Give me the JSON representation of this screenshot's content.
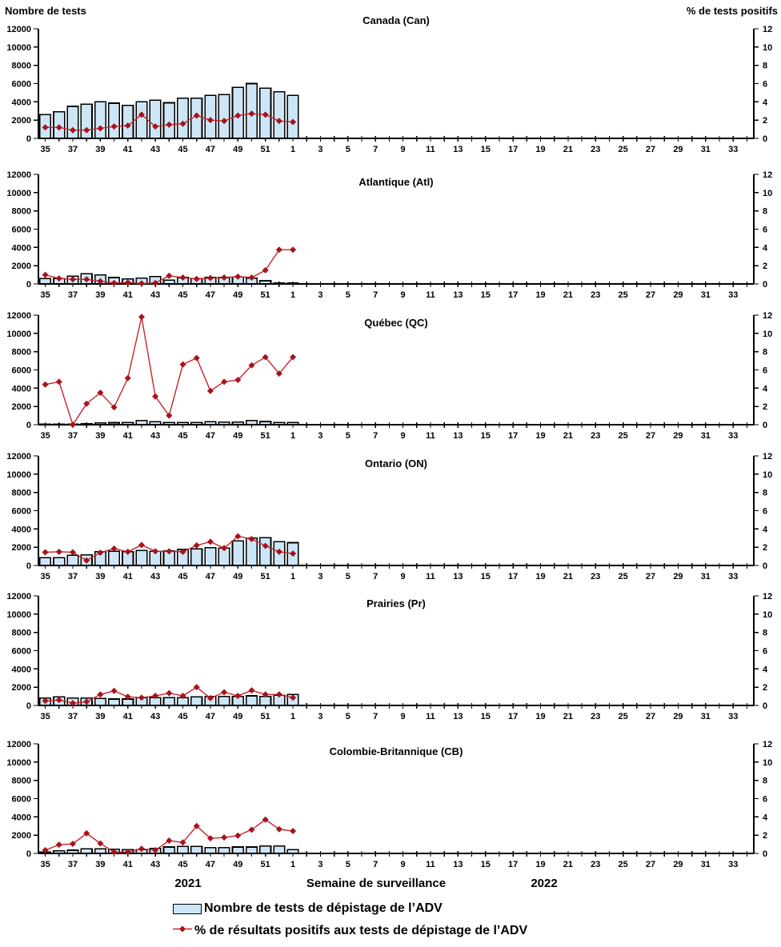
{
  "header": {
    "left_axis_title": "Nombre de tests",
    "right_axis_title": "% de tests positifs"
  },
  "footer": {
    "year_left": "2021",
    "axis_title": "Semaine de surveillance",
    "year_right": "2022"
  },
  "legend": {
    "items": [
      {
        "swatch": "bar",
        "label": "Nombre de tests de dépistage de l’ADV"
      },
      {
        "swatch": "line",
        "label": "% de résultats positifs aux tests de dépistage de l’ADV"
      }
    ]
  },
  "colors": {
    "bar_fill": "#CDE6F7",
    "bar_stroke": "#000000",
    "line": "#C9232D",
    "marker": "#A8121A",
    "axis": "#000000"
  },
  "chart_data": {
    "type": "bar",
    "subtype": "combo-bar-line-small-multiples",
    "xlabel": "Semaine de surveillance",
    "left_ylabel": "Nombre de tests",
    "right_ylabel": "% de tests positifs",
    "left_ylim": [
      0,
      12000
    ],
    "right_ylim": [
      0,
      12
    ],
    "left_yticks": [
      0,
      2000,
      4000,
      6000,
      8000,
      10000,
      12000
    ],
    "right_yticks": [
      0,
      2,
      4,
      6,
      8,
      10,
      12
    ],
    "grid": false,
    "legend_position": "bottom",
    "categories": [
      "35",
      "36",
      "37",
      "38",
      "39",
      "40",
      "41",
      "42",
      "43",
      "44",
      "45",
      "46",
      "47",
      "48",
      "49",
      "50",
      "51",
      "52",
      "1",
      "2",
      "3",
      "4",
      "5",
      "6",
      "7",
      "8",
      "9",
      "10",
      "11",
      "12",
      "13",
      "14",
      "15",
      "16",
      "17",
      "18",
      "19",
      "20",
      "21",
      "22",
      "23",
      "24",
      "25",
      "26",
      "27",
      "28",
      "29",
      "30",
      "31",
      "32",
      "33",
      "34"
    ],
    "x_tick_labels_shown": [
      "35",
      "37",
      "39",
      "41",
      "43",
      "45",
      "47",
      "49",
      "51",
      "1",
      "3",
      "5",
      "7",
      "9",
      "11",
      "13",
      "15",
      "17",
      "19",
      "21",
      "23",
      "25",
      "27",
      "29",
      "31",
      "33"
    ],
    "year_segments": [
      {
        "label": "2021",
        "weeks": "35-52"
      },
      {
        "label": "2022",
        "weeks": "1-34"
      }
    ],
    "data_weeks": [
      "35",
      "36",
      "37",
      "38",
      "39",
      "40",
      "41",
      "42",
      "43",
      "44",
      "45",
      "46",
      "47",
      "48",
      "49",
      "50",
      "51",
      "52",
      "1"
    ],
    "panels": [
      {
        "title": "Canada (Can)",
        "tests": [
          2600,
          2900,
          3500,
          3750,
          4000,
          3850,
          3600,
          4000,
          4200,
          3900,
          4400,
          4400,
          4700,
          4800,
          5600,
          6000,
          5500,
          5100,
          4700
        ],
        "pct_positive": [
          1.2,
          1.2,
          0.9,
          0.9,
          1.1,
          1.3,
          1.4,
          2.6,
          1.3,
          1.5,
          1.6,
          2.5,
          2.0,
          1.9,
          2.5,
          2.7,
          2.6,
          1.9,
          1.8
        ]
      },
      {
        "title": "Atlantique (Atl)",
        "tests": [
          600,
          600,
          850,
          1100,
          1000,
          700,
          550,
          650,
          800,
          400,
          700,
          600,
          700,
          700,
          750,
          650,
          350,
          100,
          100
        ],
        "pct_positive": [
          1.0,
          0.6,
          0.5,
          0.5,
          0.3,
          0.1,
          0.15,
          0.05,
          0.1,
          0.9,
          0.7,
          0.55,
          0.65,
          0.7,
          0.8,
          0.7,
          1.5,
          3.75,
          3.75
        ]
      },
      {
        "title": "Québec (QC)",
        "tests": [
          50,
          50,
          50,
          120,
          180,
          220,
          250,
          450,
          330,
          250,
          250,
          250,
          330,
          300,
          300,
          450,
          350,
          250,
          250
        ],
        "pct_positive": [
          4.4,
          4.7,
          0.0,
          2.3,
          3.5,
          1.9,
          5.1,
          11.8,
          3.1,
          1.0,
          6.6,
          7.3,
          3.7,
          4.7,
          4.9,
          6.5,
          7.4,
          5.6,
          7.4
        ]
      },
      {
        "title": "Ontario (ON)",
        "tests": [
          850,
          850,
          1100,
          1150,
          1500,
          1550,
          1500,
          1650,
          1550,
          1600,
          1750,
          1800,
          1950,
          1900,
          2700,
          3000,
          3050,
          2600,
          2500
        ],
        "pct_positive": [
          1.45,
          1.5,
          1.45,
          0.55,
          1.4,
          1.85,
          1.5,
          2.25,
          1.55,
          1.55,
          1.5,
          2.2,
          2.6,
          1.9,
          3.2,
          2.9,
          2.15,
          1.5,
          1.3
        ]
      },
      {
        "title": "Prairies (Pr)",
        "tests": [
          800,
          950,
          800,
          800,
          750,
          700,
          700,
          850,
          850,
          850,
          850,
          950,
          1000,
          1000,
          1000,
          1050,
          1000,
          1100,
          1200
        ],
        "pct_positive": [
          0.5,
          0.6,
          0.25,
          0.4,
          1.2,
          1.6,
          0.95,
          0.85,
          1.05,
          1.35,
          1.05,
          2.0,
          0.8,
          1.45,
          1.05,
          1.65,
          1.2,
          1.2,
          0.85
        ]
      },
      {
        "title": "Colombie-Britannique (CB)",
        "tests": [
          150,
          300,
          350,
          500,
          500,
          450,
          400,
          400,
          550,
          700,
          750,
          750,
          650,
          650,
          700,
          700,
          800,
          800,
          400
        ],
        "pct_positive": [
          0.35,
          0.95,
          1.05,
          2.2,
          1.1,
          0.15,
          0.15,
          0.5,
          0.35,
          1.4,
          1.2,
          3.0,
          1.65,
          1.75,
          1.95,
          2.6,
          3.7,
          2.65,
          2.45
        ]
      }
    ]
  }
}
